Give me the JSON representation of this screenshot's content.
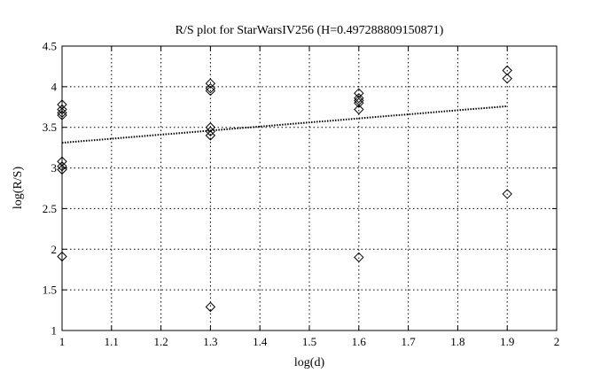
{
  "chart_data": {
    "type": "scatter",
    "title": "R/S plot for StarWarsIV256 (H=0.497288809150871)",
    "xlabel": "log(d)",
    "ylabel": "log(R/S)",
    "xlim": [
      1,
      2
    ],
    "ylim": [
      1,
      4.5
    ],
    "xticks": [
      "1",
      "1.1",
      "1.2",
      "1.3",
      "1.4",
      "1.5",
      "1.6",
      "1.7",
      "1.8",
      "1.9",
      "2"
    ],
    "yticks": [
      "1",
      "1.5",
      "2",
      "2.5",
      "3",
      "3.5",
      "4",
      "4.5"
    ],
    "grid": true,
    "legend": "none",
    "marker": "diamond",
    "line_style": "dotted",
    "colors": {
      "points": "#000000",
      "fit_line": "#000000",
      "grid": "#000000"
    },
    "series": [
      {
        "values": [
          {
            "x": 1.0,
            "y": 3.78
          },
          {
            "x": 1.0,
            "y": 3.72
          },
          {
            "x": 1.0,
            "y": 3.68
          },
          {
            "x": 1.0,
            "y": 3.65
          },
          {
            "x": 1.0,
            "y": 3.08
          },
          {
            "x": 1.0,
            "y": 3.02
          },
          {
            "x": 1.0,
            "y": 2.98
          },
          {
            "x": 1.0,
            "y": 1.91
          },
          {
            "x": 1.3,
            "y": 4.04
          },
          {
            "x": 1.3,
            "y": 3.98
          },
          {
            "x": 1.3,
            "y": 3.95
          },
          {
            "x": 1.3,
            "y": 3.5
          },
          {
            "x": 1.3,
            "y": 3.45
          },
          {
            "x": 1.3,
            "y": 3.4
          },
          {
            "x": 1.3,
            "y": 1.29
          },
          {
            "x": 1.6,
            "y": 3.92
          },
          {
            "x": 1.6,
            "y": 3.86
          },
          {
            "x": 1.6,
            "y": 3.83
          },
          {
            "x": 1.6,
            "y": 3.8
          },
          {
            "x": 1.6,
            "y": 3.72
          },
          {
            "x": 1.6,
            "y": 1.9
          },
          {
            "x": 1.9,
            "y": 4.2
          },
          {
            "x": 1.9,
            "y": 4.1
          },
          {
            "x": 1.9,
            "y": 2.68
          }
        ]
      }
    ],
    "fit_line": {
      "x": [
        1.0,
        1.9
      ],
      "y": [
        3.31,
        3.76
      ]
    }
  }
}
